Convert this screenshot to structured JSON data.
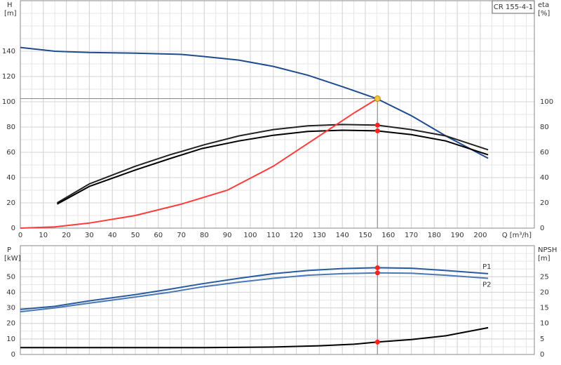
{
  "chart_data": [
    {
      "type": "line",
      "ylabel": "H",
      "yunit": "[m]",
      "y2label": "eta",
      "y2unit": "[%]",
      "xlabel": "Q [m³/h]",
      "annotation": "CR 155-4-1",
      "xlim": [
        0,
        223.5
      ],
      "xticks": [
        0,
        10,
        20,
        30,
        40,
        50,
        60,
        70,
        80,
        90,
        100,
        110,
        120,
        130,
        140,
        150,
        160,
        170,
        180,
        190,
        200
      ],
      "ylim": [
        0,
        180
      ],
      "yticks": [
        0,
        20,
        40,
        60,
        80,
        100,
        120,
        140
      ],
      "y2lim": [
        0,
        180
      ],
      "y2ticks": [
        0,
        20,
        40,
        60,
        80,
        100
      ],
      "grid": true,
      "series": [
        {
          "color": "#1f4b8f",
          "x": [
            0,
            15,
            30,
            50,
            70,
            79,
            95,
            110,
            125,
            140,
            155,
            170,
            185,
            203.4
          ],
          "values": [
            143,
            140,
            139,
            138.5,
            137.5,
            136,
            133,
            128,
            121,
            112,
            102.5,
            89,
            73,
            55.3
          ]
        },
        {
          "color": "#222222",
          "axis": "y2",
          "x": [
            16,
            30,
            50,
            65,
            80,
            95,
            110,
            125,
            140,
            155,
            170,
            185,
            203.4
          ],
          "values": [
            20,
            35,
            49,
            58,
            66,
            73,
            78,
            81,
            82,
            81.5,
            78,
            73,
            62
          ]
        },
        {
          "color": "#000000",
          "axis": "y2",
          "x": [
            16,
            30,
            50,
            65,
            79,
            95,
            110,
            125,
            140,
            155,
            170,
            185,
            203.4
          ],
          "values": [
            19,
            33,
            46,
            55,
            63,
            69,
            73.5,
            76.5,
            77.5,
            77,
            74,
            69,
            58
          ]
        },
        {
          "color": "#ff3b3b",
          "x": [
            0,
            15,
            30,
            50,
            70,
            90,
            110,
            130,
            145,
            155.3
          ],
          "values": [
            0,
            1,
            4,
            10,
            19,
            30,
            49,
            73,
            91,
            102.5
          ]
        }
      ],
      "operating_point": {
        "x": 155.3,
        "y": 102.5,
        "color": "#f5c542"
      },
      "markers": [
        {
          "x": 155.3,
          "y": 81.5,
          "axis": "y2",
          "color": "#ff2020"
        },
        {
          "x": 155.3,
          "y": 77,
          "axis": "y2",
          "color": "#ff2020"
        }
      ]
    },
    {
      "type": "line",
      "ylabel": "P",
      "yunit": "[kW]",
      "y2label": "NPSH",
      "y2unit": "[m]",
      "xlim": [
        0,
        223.5
      ],
      "ylim": [
        0,
        70
      ],
      "yticks": [
        0,
        10,
        20,
        30,
        40,
        50
      ],
      "y2lim": [
        0,
        35
      ],
      "y2ticks": [
        0,
        5,
        10,
        15,
        20,
        25
      ],
      "grid": true,
      "series": [
        {
          "name": "P1",
          "color": "#2a5aa0",
          "x": [
            0,
            15,
            30,
            50,
            65,
            79,
            95,
            110,
            125,
            140,
            155,
            170,
            185,
            203.4
          ],
          "values": [
            29,
            31,
            34.5,
            38.5,
            42,
            45.5,
            49,
            52,
            54,
            55.3,
            55.8,
            55.5,
            54,
            52
          ]
        },
        {
          "name": "P2",
          "color": "#4a78b8",
          "x": [
            0,
            15,
            30,
            50,
            65,
            79,
            95,
            110,
            125,
            140,
            155,
            170,
            185,
            203.4
          ],
          "values": [
            27.5,
            30,
            33,
            37,
            40,
            43.5,
            46.5,
            49,
            51,
            52,
            52.5,
            52.3,
            51,
            49
          ]
        },
        {
          "color": "#000000",
          "axis": "y2",
          "x": [
            0,
            40,
            80,
            110,
            130,
            145,
            155.3,
            170,
            185,
            203.4
          ],
          "values": [
            2.2,
            2.2,
            2.2,
            2.4,
            2.8,
            3.3,
            4,
            4.8,
            6,
            8.6
          ]
        }
      ],
      "markers": [
        {
          "x": 155.3,
          "y": 55.8,
          "color": "#ff2020"
        },
        {
          "x": 155.3,
          "y": 52.5,
          "color": "#ff2020"
        },
        {
          "x": 155.3,
          "y": 4,
          "axis": "y2",
          "color": "#ff2020"
        }
      ]
    }
  ]
}
